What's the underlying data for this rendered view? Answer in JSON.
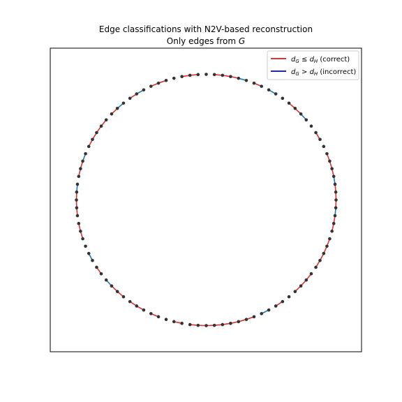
{
  "chart_data": {
    "type": "scatter",
    "title_line1": "Edge classifications with N2V-based reconstruction",
    "title_line2_prefix": "Only edges from ",
    "title_line2_var": "G",
    "xlabel": "",
    "ylabel": "",
    "grid": false,
    "axis_ticks": false,
    "legend_placement": "top-right",
    "legend": [
      {
        "label": "d_G ≤ d_H (correct)",
        "sub_a": "G",
        "rel": "≤",
        "sub_b": "H",
        "tail": " (correct)",
        "color": "#e03030"
      },
      {
        "label": "d_G > d_H (incorrect)",
        "sub_a": "G",
        "rel": ">",
        "sub_b": "H",
        "tail": " (incorrect)",
        "color": "#2020e0"
      }
    ],
    "node_count": 100,
    "node_color": "#333333",
    "correct_color": "#e03030",
    "incorrect_color": "#1f77b4",
    "edges_correct": [
      [
        1,
        2
      ],
      [
        2,
        3
      ],
      [
        3,
        4
      ],
      [
        6,
        7
      ],
      [
        11,
        12
      ],
      [
        12,
        13
      ],
      [
        16,
        17
      ],
      [
        19,
        20
      ],
      [
        20,
        21
      ],
      [
        21,
        22
      ],
      [
        23,
        24
      ],
      [
        24,
        25
      ],
      [
        25,
        26
      ],
      [
        27,
        28
      ],
      [
        28,
        29
      ],
      [
        30,
        31
      ],
      [
        31,
        32
      ],
      [
        32,
        33
      ],
      [
        33,
        34
      ],
      [
        35,
        36
      ],
      [
        36,
        37
      ],
      [
        37,
        38
      ],
      [
        40,
        41
      ],
      [
        44,
        45
      ],
      [
        45,
        46
      ],
      [
        46,
        47
      ],
      [
        47,
        48
      ],
      [
        48,
        49
      ],
      [
        49,
        50
      ],
      [
        50,
        51
      ],
      [
        51,
        52
      ],
      [
        53,
        54
      ],
      [
        56,
        57
      ],
      [
        58,
        59
      ],
      [
        59,
        60
      ],
      [
        61,
        62
      ],
      [
        62,
        63
      ],
      [
        65,
        66
      ],
      [
        70,
        71
      ],
      [
        71,
        72
      ],
      [
        73,
        74
      ],
      [
        74,
        75
      ],
      [
        75,
        76
      ],
      [
        78,
        79
      ],
      [
        79,
        80
      ],
      [
        82,
        83
      ],
      [
        83,
        84
      ],
      [
        84,
        85
      ],
      [
        85,
        86
      ],
      [
        87,
        88
      ],
      [
        90,
        91
      ],
      [
        93,
        94
      ],
      [
        94,
        95
      ],
      [
        97,
        98
      ],
      [
        98,
        99
      ]
    ],
    "edges_incorrect": [
      [
        4,
        5
      ],
      [
        8,
        9
      ],
      [
        13,
        14
      ],
      [
        22,
        23
      ],
      [
        26,
        27
      ],
      [
        42,
        43
      ],
      [
        63,
        64
      ],
      [
        67,
        68
      ],
      [
        76,
        77
      ],
      [
        80,
        81
      ],
      [
        88,
        89
      ],
      [
        91,
        92
      ]
    ]
  }
}
